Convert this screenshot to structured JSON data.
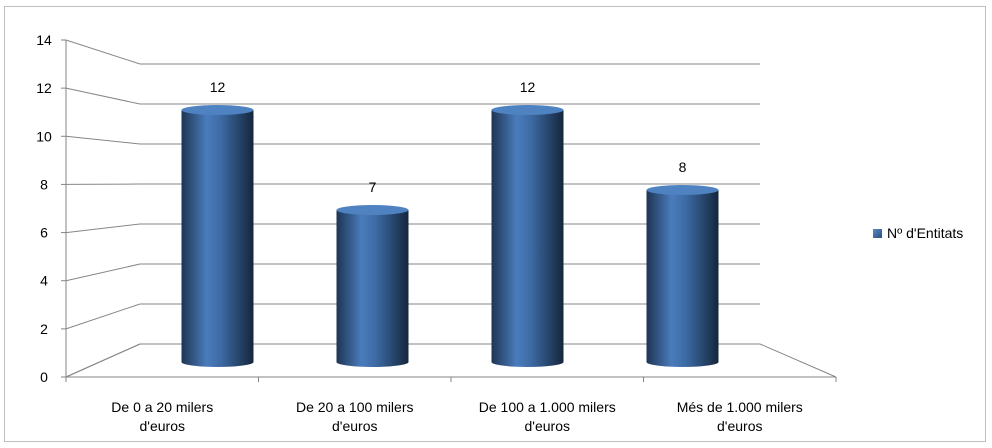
{
  "chart_data": {
    "type": "bar",
    "style": "3d-cylinder",
    "categories": [
      [
        "De 0 a 20 milers",
        "d'euros"
      ],
      [
        "De 20 a 100 milers",
        "d'euros"
      ],
      [
        "De 100 a 1.000 milers",
        "d'euros"
      ],
      [
        "Més de 1.000 milers",
        "d'euros"
      ]
    ],
    "series": [
      {
        "name": "Nº d'Entitats",
        "values": [
          12,
          7,
          12,
          8
        ],
        "color": "#3f6fa8"
      }
    ],
    "data_labels": [
      "12",
      "7",
      "12",
      "8"
    ],
    "yticks": [
      "0",
      "2",
      "4",
      "6",
      "8",
      "10",
      "12",
      "14"
    ],
    "ylim": [
      0,
      14
    ],
    "grid": true,
    "legend_position": "right",
    "title": "",
    "xlabel": "",
    "ylabel": ""
  }
}
